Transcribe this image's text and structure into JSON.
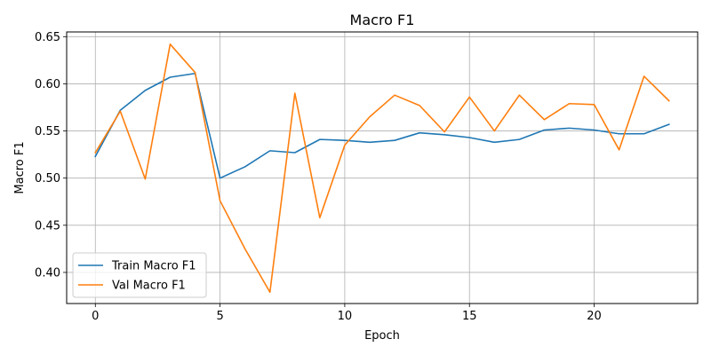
{
  "chart_data": {
    "type": "line",
    "title": "Macro F1",
    "xlabel": "Epoch",
    "ylabel": "Macro F1",
    "x": [
      0,
      1,
      2,
      3,
      4,
      5,
      6,
      7,
      8,
      9,
      10,
      11,
      12,
      13,
      14,
      15,
      16,
      17,
      18,
      19,
      20,
      21,
      22,
      23
    ],
    "xlim": [
      -1.15,
      24.15
    ],
    "ylim": [
      0.367,
      0.655
    ],
    "xticks": [
      0,
      5,
      10,
      15,
      20
    ],
    "yticks": [
      0.4,
      0.45,
      0.5,
      0.55,
      0.6,
      0.65
    ],
    "xtick_labels": [
      "0",
      "5",
      "10",
      "15",
      "20"
    ],
    "ytick_labels": [
      "0.40",
      "0.45",
      "0.50",
      "0.55",
      "0.60",
      "0.65"
    ],
    "grid": true,
    "legend_position": "lower-left",
    "series": [
      {
        "name": "Train Macro F1",
        "color": "#1f77b4",
        "values": [
          0.523,
          0.572,
          0.593,
          0.607,
          0.611,
          0.5,
          0.512,
          0.529,
          0.527,
          0.541,
          0.54,
          0.538,
          0.54,
          0.548,
          0.546,
          0.543,
          0.538,
          0.541,
          0.551,
          0.553,
          0.551,
          0.547,
          0.547,
          0.557
        ]
      },
      {
        "name": "Val Macro F1",
        "color": "#ff7f0e",
        "values": [
          0.527,
          0.571,
          0.499,
          0.642,
          0.612,
          0.476,
          0.425,
          0.379,
          0.59,
          0.458,
          0.535,
          0.565,
          0.588,
          0.577,
          0.549,
          0.586,
          0.55,
          0.588,
          0.562,
          0.579,
          0.578,
          0.53,
          0.608,
          0.582
        ]
      }
    ]
  }
}
